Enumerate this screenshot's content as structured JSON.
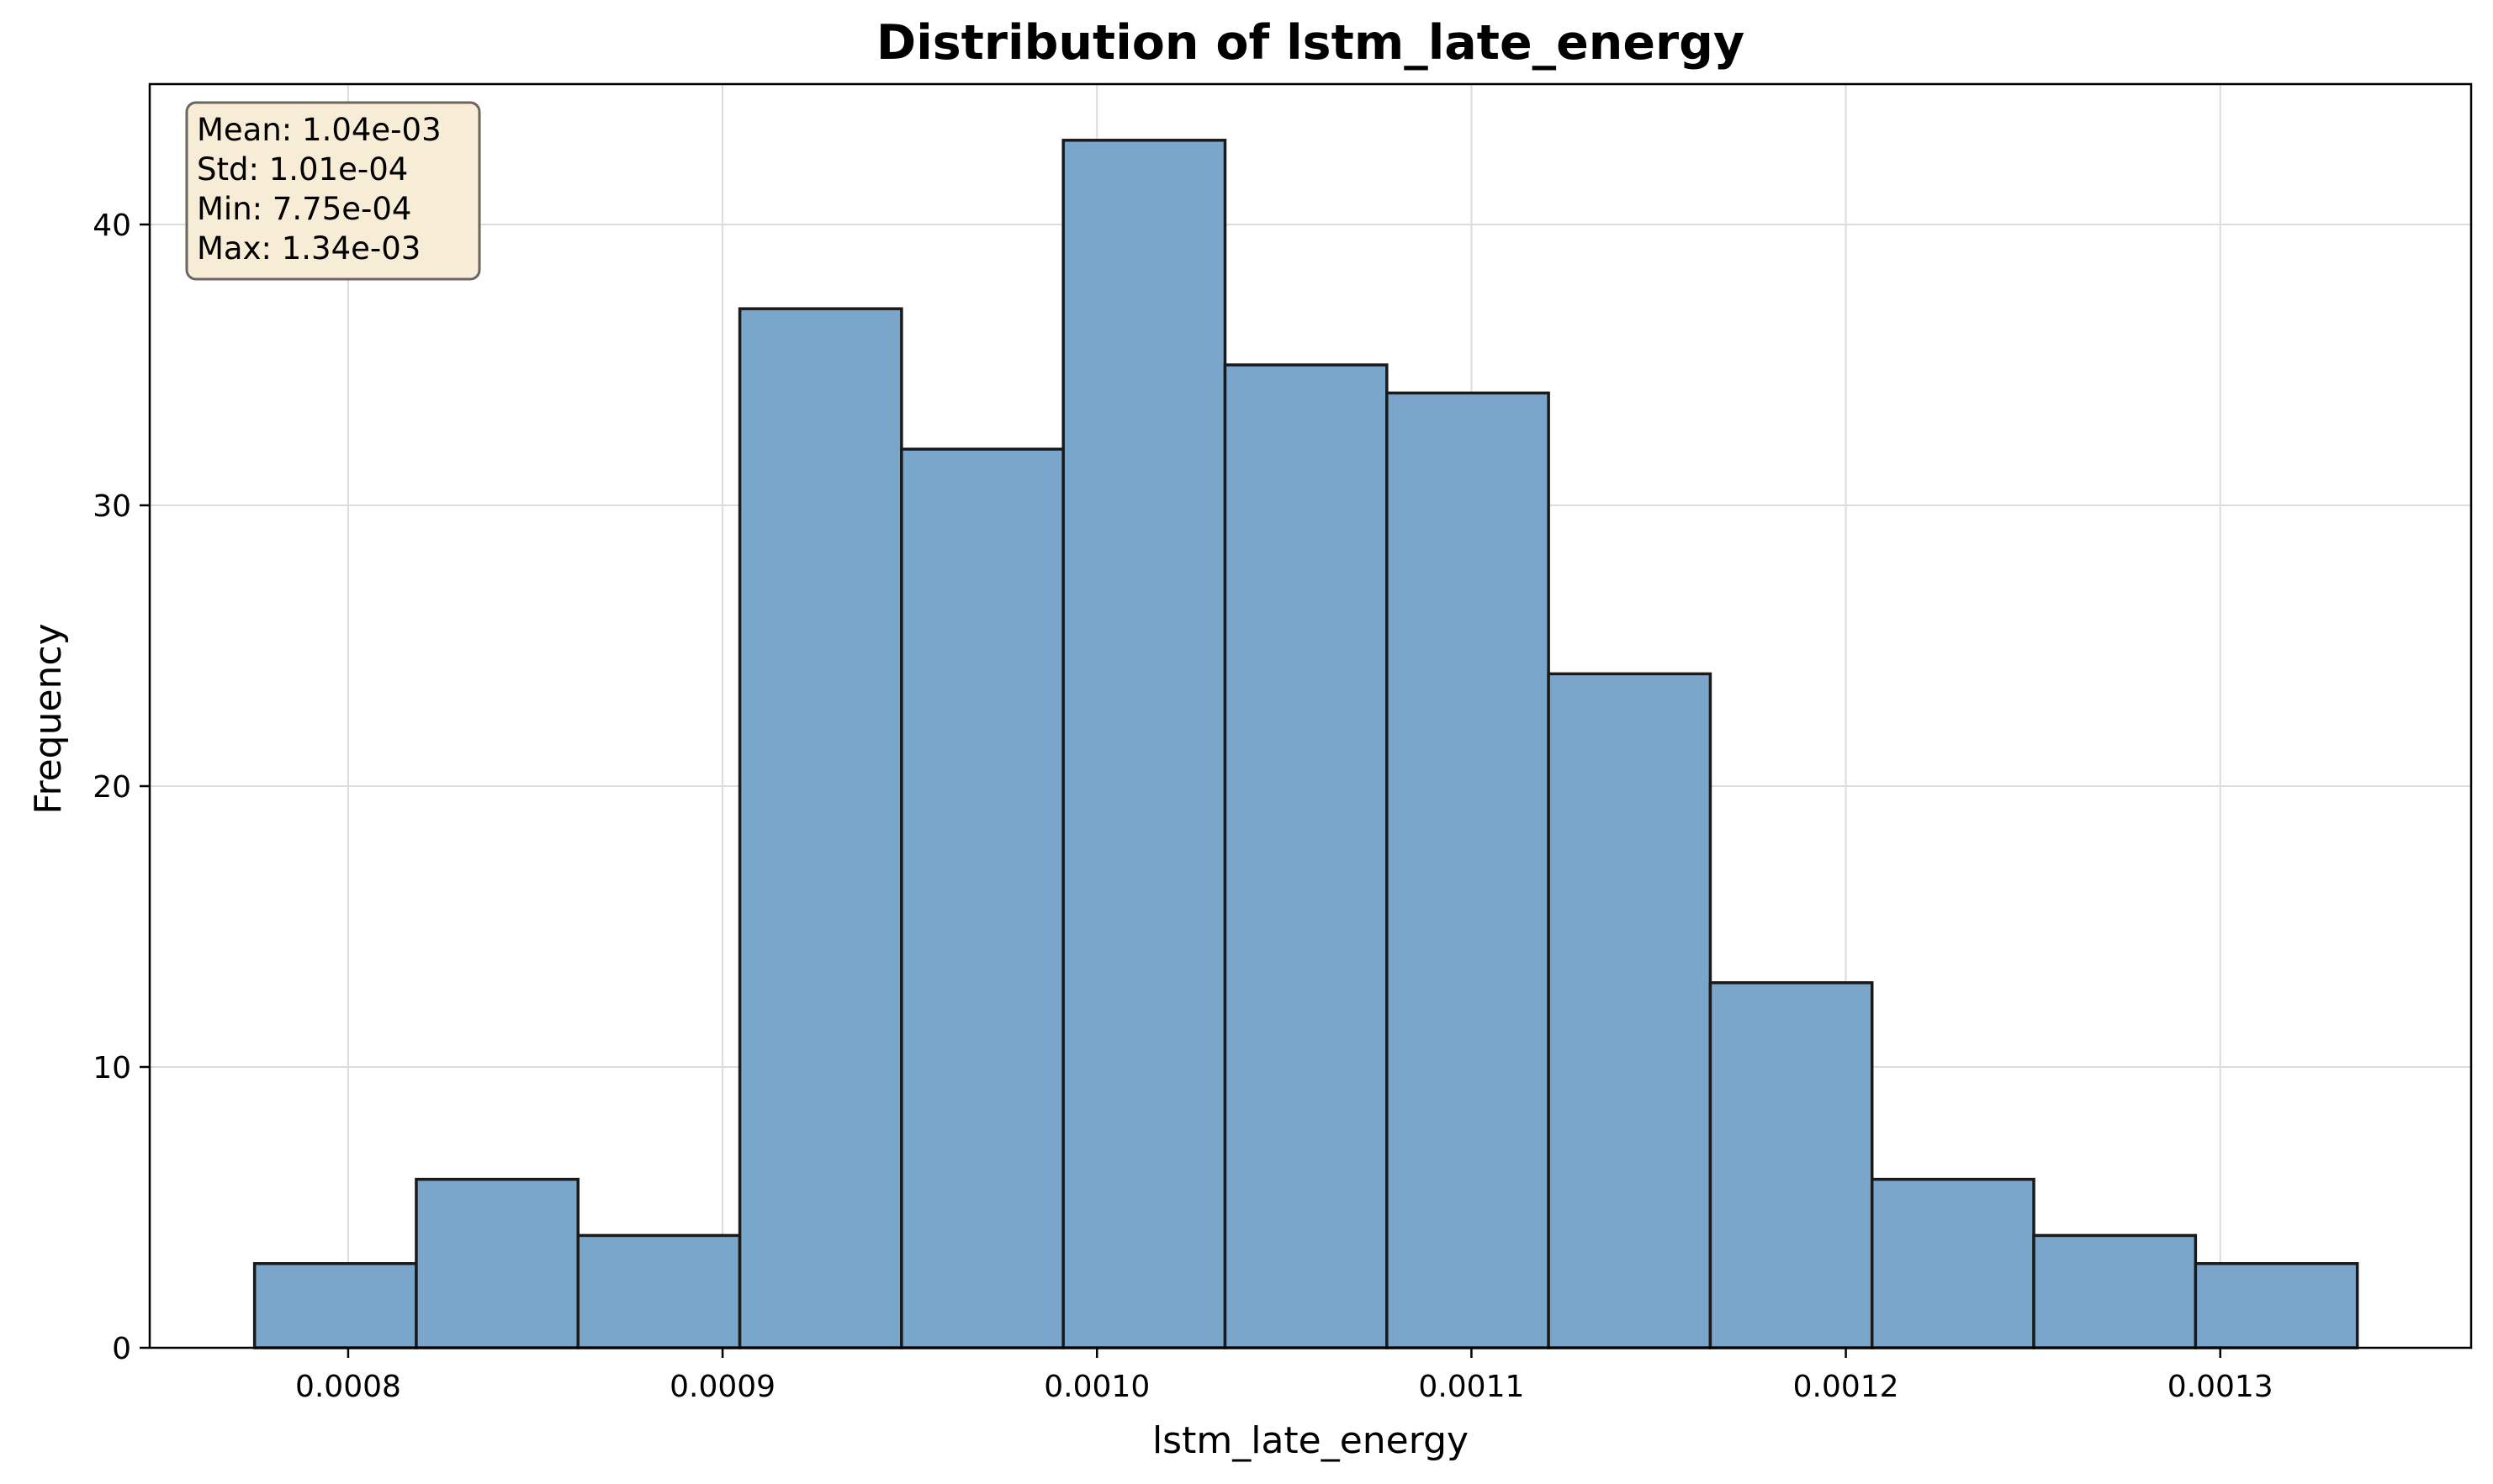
{
  "chart_data": {
    "type": "bar",
    "title": "Distribution of lstm_late_energy",
    "xlabel": "lstm_late_energy",
    "ylabel": "Frequency",
    "bin_edges": [
      0.000775,
      0.0008182,
      0.0008614,
      0.0009046,
      0.0009478,
      0.000991,
      0.0010342,
      0.0010774,
      0.0011206,
      0.0011638,
      0.001207,
      0.0012502,
      0.0012934,
      0.0013366
    ],
    "values": [
      3,
      6,
      4,
      37,
      32,
      43,
      35,
      34,
      24,
      13,
      6,
      4,
      3
    ],
    "xlim": [
      0.000747,
      0.001367
    ],
    "ylim": [
      0,
      45
    ],
    "x_ticks": [
      0.0008,
      0.0009,
      0.001,
      0.0011,
      0.0012,
      0.0013
    ],
    "x_tick_labels": [
      "0.0008",
      "0.0009",
      "0.0010",
      "0.0011",
      "0.0012",
      "0.0013"
    ],
    "y_ticks": [
      0,
      10,
      20,
      30,
      40
    ],
    "y_tick_labels": [
      "0",
      "10",
      "20",
      "30",
      "40"
    ],
    "grid": true,
    "bar_color": "#7ba6cb",
    "edge_color": "#1a1a1a",
    "stats": {
      "lines": [
        "Mean: 1.04e-03",
        "Std: 1.01e-04",
        "Min: 7.75e-04",
        "Max: 1.34e-03"
      ],
      "placement": "top-left",
      "background_color": "#f7ecd6",
      "border_color": "#6b6560"
    }
  }
}
